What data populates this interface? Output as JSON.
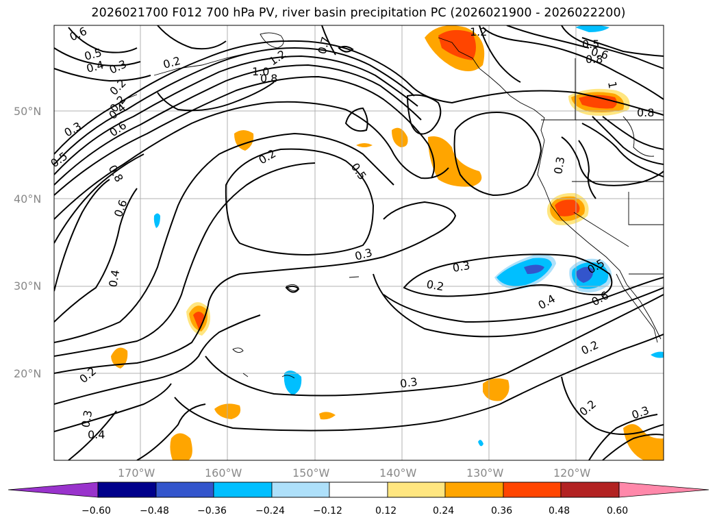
{
  "title": "2026021700 F012 700 hPa PV, river basin precipitation PC (2026021900 - 2026022200)",
  "lat_labels": [
    "50°N",
    "40°N",
    "30°N",
    "20°N"
  ],
  "lon_labels": [
    "170°W",
    "160°W",
    "150°W",
    "140°W",
    "130°W",
    "120°W"
  ],
  "colorbar": {
    "tick_labels": [
      "−0.60",
      "−0.48",
      "−0.36",
      "−0.24",
      "−0.12",
      "0.12",
      "0.24",
      "0.36",
      "0.48",
      "0.60"
    ],
    "bounds": [
      -0.6,
      -0.48,
      -0.36,
      -0.24,
      -0.12,
      0.12,
      0.24,
      0.36,
      0.48,
      0.6
    ],
    "colors": [
      "#9933cc",
      "#00008b",
      "#3355cc",
      "#00bfff",
      "#aee0fa",
      "#ffffff",
      "#ffe680",
      "#ffa500",
      "#ff4500",
      "#b22222",
      "#ff88aa"
    ]
  },
  "contour_labels": [
    "0.6",
    "0.5",
    "0.4",
    "0.3",
    "0.2",
    "0.2",
    "0.7",
    "1.2",
    "1.0",
    "0.8",
    "0.2",
    "0.4",
    "0.6",
    "0.3",
    "0.5",
    "0.8",
    "0.6",
    "0.4",
    "0.2",
    "0.5",
    "0.3",
    "0.3",
    "0.2",
    "0.4",
    "0.5",
    "0.6",
    "0.2",
    "0.3",
    "0.2",
    "0.3",
    "0.3",
    "0.2",
    "1.2",
    "0.5",
    "0.6",
    "0.8",
    "1",
    "0.8",
    "0.3"
  ],
  "colors": {
    "contour": "#000000",
    "grid": "#b0b0b0",
    "axis_label": "#888888"
  }
}
